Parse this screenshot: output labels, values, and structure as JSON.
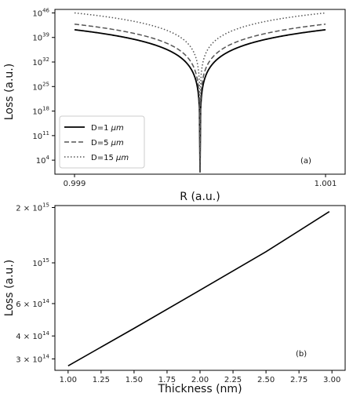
{
  "chart_data": [
    {
      "type": "line",
      "panel_label": "(a)",
      "xlabel": "R (a.u.)",
      "ylabel": "Loss (a.u.)",
      "xlim": [
        0.999,
        1.001
      ],
      "ylim_exponent": [
        0,
        47
      ],
      "y_scale": "log",
      "x_ticks": [
        {
          "value": 0.999,
          "label": "0.999"
        },
        {
          "value": 1.001,
          "label": "1.001"
        }
      ],
      "y_ticks": [
        {
          "exp": 4,
          "base": "10",
          "sup": "4"
        },
        {
          "exp": 11,
          "base": "10",
          "sup": "11"
        },
        {
          "exp": 18,
          "base": "10",
          "sup": "18"
        },
        {
          "exp": 25,
          "base": "10",
          "sup": "25"
        },
        {
          "exp": 32,
          "base": "10",
          "sup": "32"
        },
        {
          "exp": 39,
          "base": "10",
          "sup": "39"
        },
        {
          "exp": 46,
          "base": "10",
          "sup": "46"
        }
      ],
      "legend_position": "lower-left",
      "series": [
        {
          "name_prefix": "D=1 ",
          "name_unit": "μm",
          "style": "solid",
          "color": "#000000",
          "x": [
            0.999,
            0.9995,
            0.99995,
            1.0,
            1.00005,
            1.0005,
            1.001
          ],
          "y_log10": [
            41.2,
            36.5,
            28.5,
            0.5,
            28.5,
            36.5,
            41.2
          ]
        },
        {
          "name_prefix": "D=5 ",
          "name_unit": "μm",
          "style": "dashed",
          "color": "#555555",
          "x": [
            0.999,
            0.9995,
            0.99995,
            1.0,
            1.00005,
            1.0005,
            1.001
          ],
          "y_log10": [
            42.8,
            38.2,
            30.5,
            0.5,
            30.5,
            38.2,
            42.8
          ]
        },
        {
          "name_prefix": "D=15 ",
          "name_unit": "μm",
          "style": "dotted",
          "color": "#555555",
          "x": [
            0.999,
            0.9995,
            0.99995,
            1.0,
            1.00005,
            1.0005,
            1.001
          ],
          "y_log10": [
            46.0,
            41.8,
            34.8,
            0.5,
            34.8,
            41.8,
            46.0
          ]
        }
      ]
    },
    {
      "type": "line",
      "panel_label": "(b)",
      "xlabel": "Thickness (nm)",
      "ylabel": "Loss (a.u.)",
      "xlim": [
        0.9,
        3.1
      ],
      "ylim": [
        260000000000000.0,
        2050000000000000.0
      ],
      "y_scale": "log",
      "x_ticks": [
        {
          "value": 1.0,
          "label": "1.00"
        },
        {
          "value": 1.25,
          "label": "1.25"
        },
        {
          "value": 1.5,
          "label": "1.50"
        },
        {
          "value": 1.75,
          "label": "1.75"
        },
        {
          "value": 2.0,
          "label": "2.00"
        },
        {
          "value": 2.25,
          "label": "2.25"
        },
        {
          "value": 2.5,
          "label": "2.50"
        },
        {
          "value": 2.75,
          "label": "2.75"
        },
        {
          "value": 3.0,
          "label": "3.00"
        }
      ],
      "y_ticks": [
        {
          "value": 300000000000000.0,
          "base": "3 × 10",
          "sup": "14"
        },
        {
          "value": 400000000000000.0,
          "base": "4 × 10",
          "sup": "14"
        },
        {
          "value": 600000000000000.0,
          "base": "6 × 10",
          "sup": "14"
        },
        {
          "value": 1000000000000000.0,
          "base": "10",
          "sup": "15"
        },
        {
          "value": 2000000000000000.0,
          "base": "2 × 10",
          "sup": "15"
        }
      ],
      "series": [
        {
          "style": "solid",
          "color": "#000000",
          "x": [
            1.0,
            1.5,
            2.0,
            2.5,
            2.98
          ],
          "y": [
            275000000000000.0,
            440000000000000.0,
            710000000000000.0,
            1150000000000000.0,
            1900000000000000.0
          ]
        }
      ]
    }
  ]
}
